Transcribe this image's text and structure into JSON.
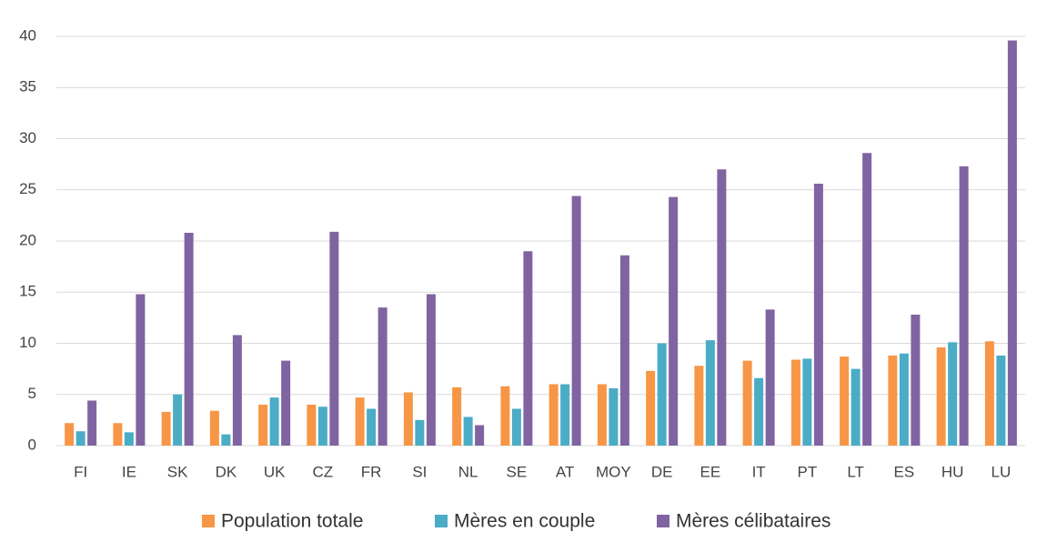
{
  "chart_data": {
    "type": "bar",
    "categories": [
      "FI",
      "IE",
      "SK",
      "DK",
      "UK",
      "CZ",
      "FR",
      "SI",
      "NL",
      "SE",
      "AT",
      "MOY",
      "DE",
      "EE",
      "IT",
      "PT",
      "LT",
      "ES",
      "HU",
      "LU"
    ],
    "series": [
      {
        "name": "Population totale",
        "color": "#f79646",
        "values": [
          2.2,
          2.2,
          3.3,
          3.4,
          4.0,
          4.0,
          4.7,
          5.2,
          5.7,
          5.8,
          6.0,
          6.0,
          7.3,
          7.8,
          8.3,
          8.4,
          8.7,
          8.8,
          9.6,
          10.2
        ]
      },
      {
        "name": "Mères en couple",
        "color": "#4bacc6",
        "values": [
          1.4,
          1.3,
          5.0,
          1.1,
          4.7,
          3.8,
          3.6,
          2.5,
          2.8,
          3.6,
          6.0,
          5.6,
          10.0,
          10.3,
          6.6,
          8.5,
          7.5,
          9.0,
          10.1,
          8.8
        ]
      },
      {
        "name": "Mères célibataires",
        "color": "#8064a2",
        "values": [
          4.4,
          14.8,
          20.8,
          10.8,
          8.3,
          20.9,
          13.5,
          14.8,
          2.0,
          19.0,
          24.4,
          18.6,
          24.3,
          27.0,
          13.3,
          25.6,
          28.6,
          12.8,
          27.3,
          39.6
        ]
      }
    ],
    "ylim": [
      0,
      40
    ],
    "yticks": [
      0,
      5,
      10,
      15,
      20,
      25,
      30,
      35,
      40
    ],
    "grid": true,
    "legend": "bottom"
  }
}
